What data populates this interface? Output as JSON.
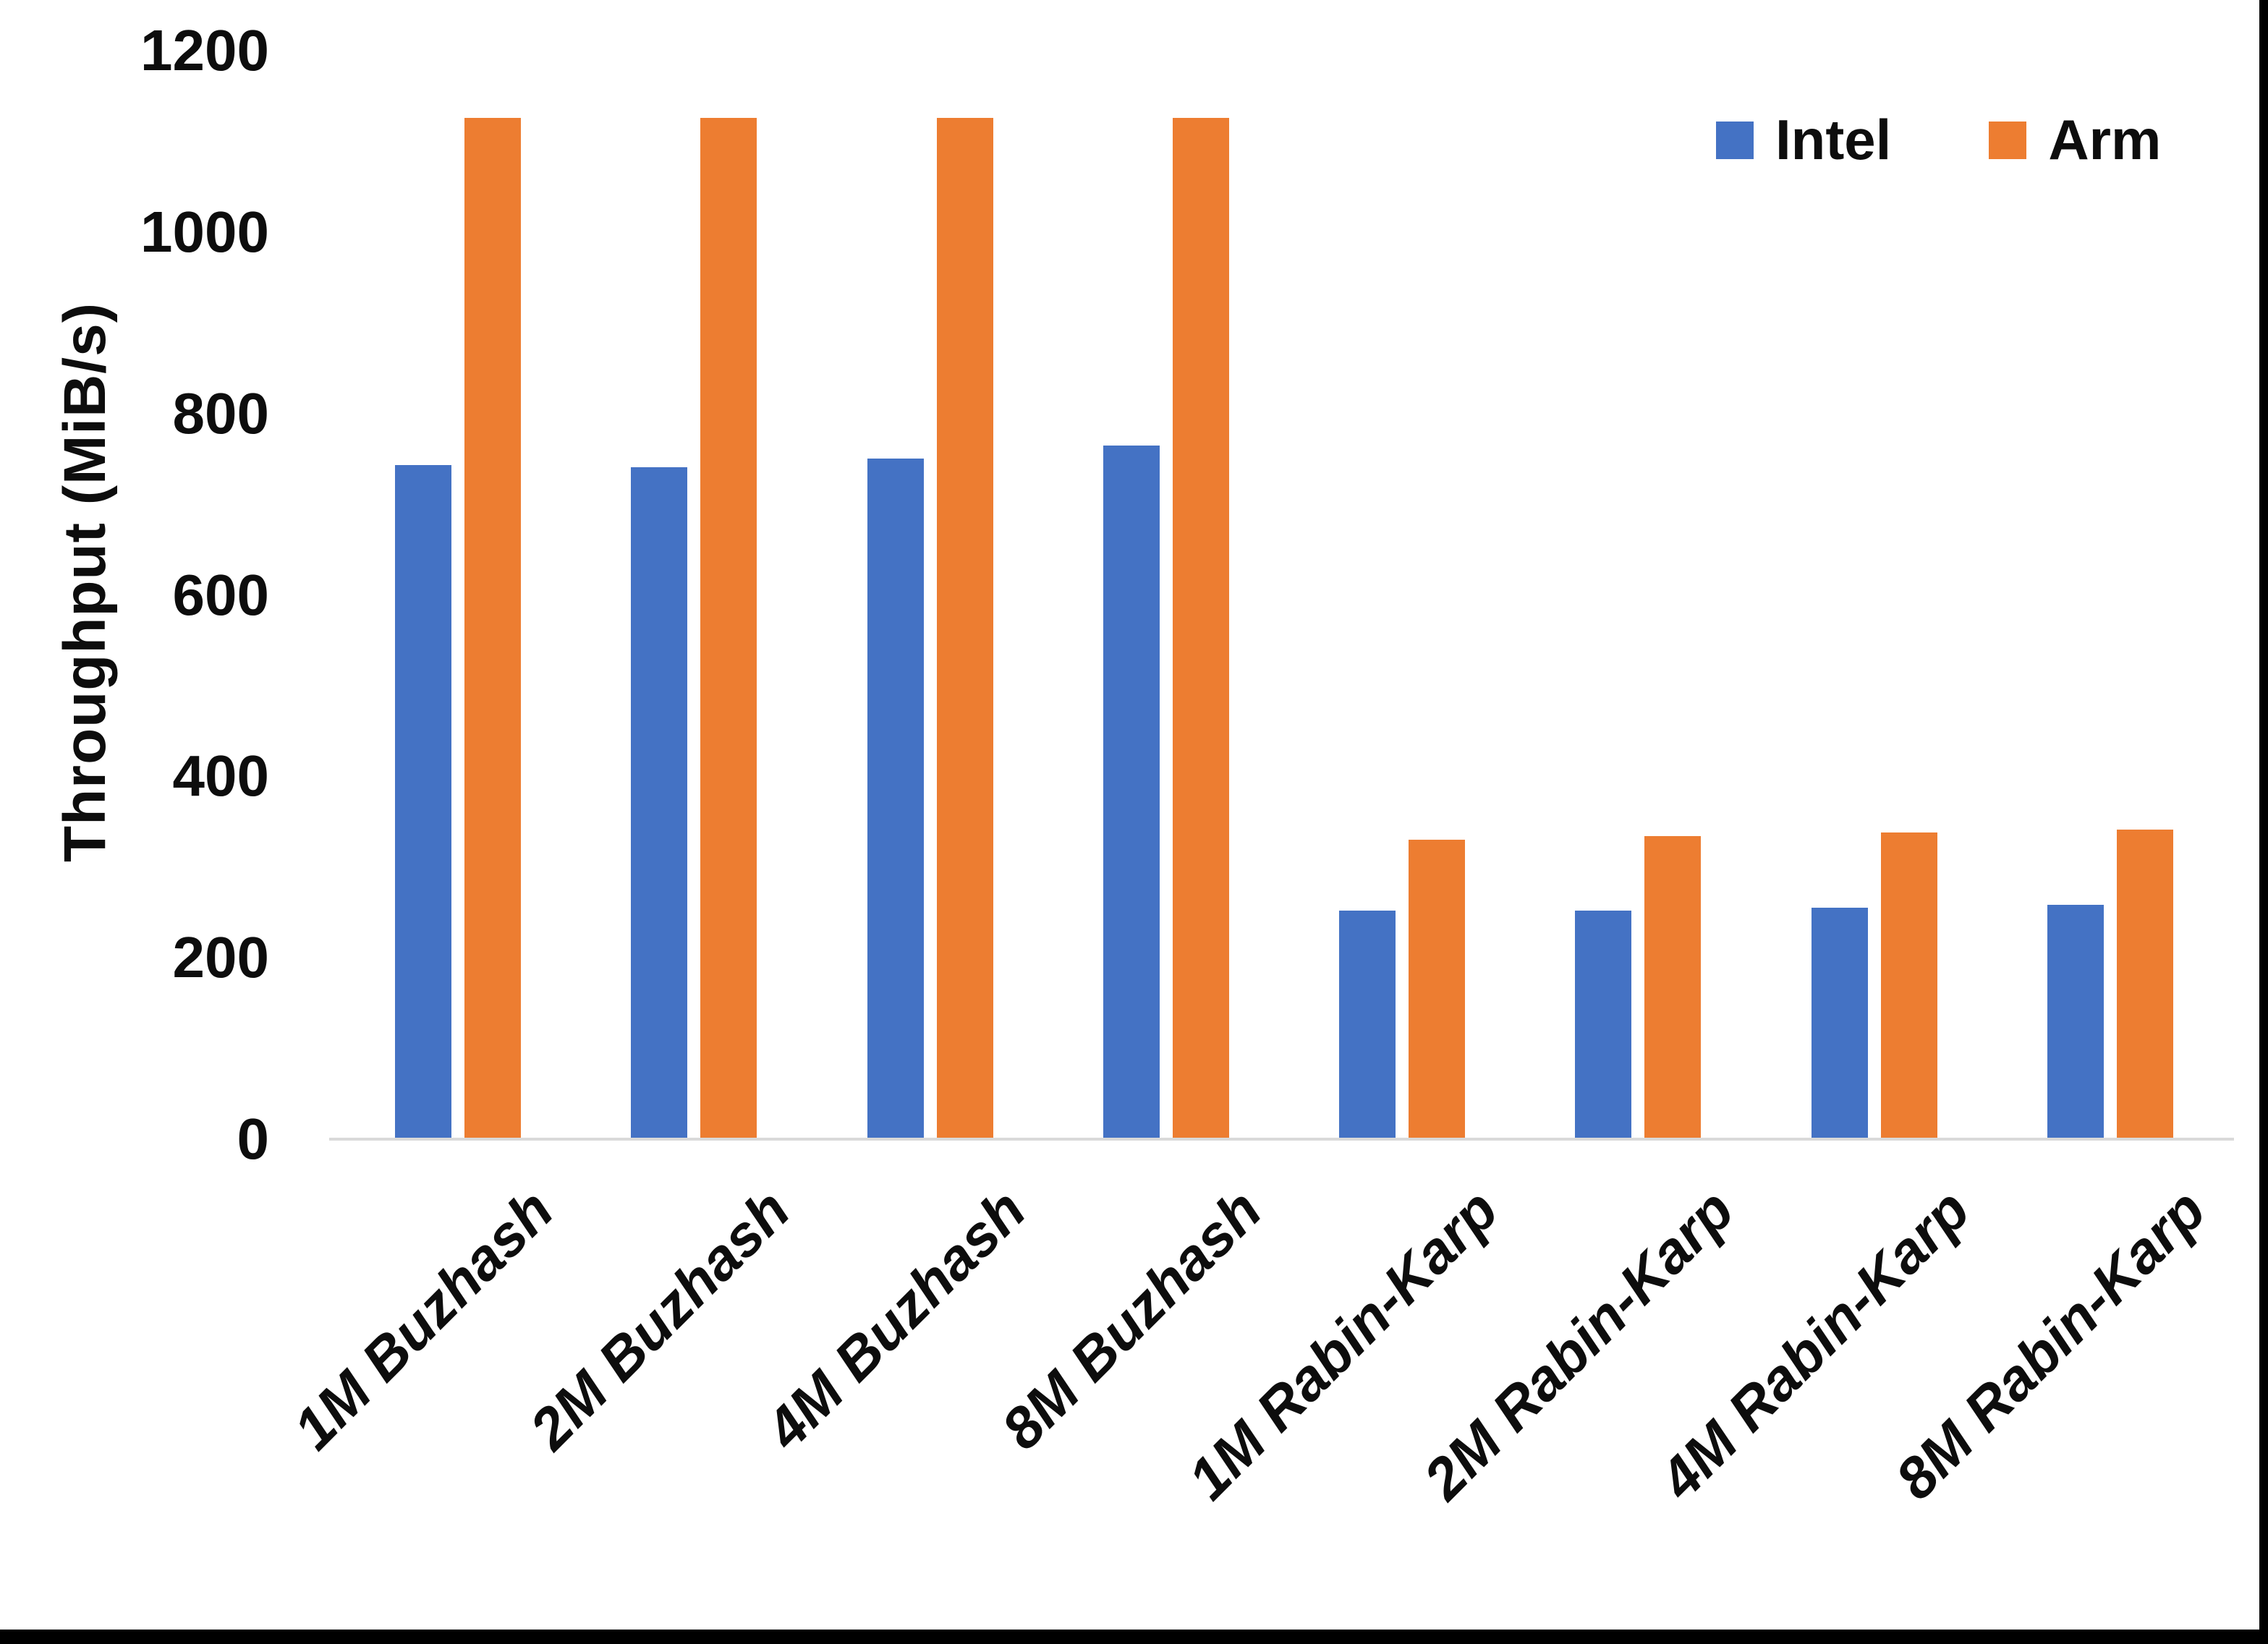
{
  "chart_data": {
    "type": "bar",
    "title": "",
    "ylabel": "Throughput (MiB/s)",
    "xlabel": "",
    "ylim": [
      0,
      1200
    ],
    "yticks": [
      0,
      200,
      400,
      600,
      800,
      1000,
      1200
    ],
    "categories": [
      "1M Buzhash",
      "2M Buzhash",
      "4M Buzhash",
      "8M Buzhash",
      "1M Rabin-Karp",
      "2M Rabin-Karp",
      "4M Rabin-Karp",
      "8M Rabin-Karp"
    ],
    "series": [
      {
        "name": "Intel",
        "color": "#4472C4",
        "values": [
          743,
          741,
          750,
          765,
          252,
          252,
          255,
          258
        ]
      },
      {
        "name": "Arm",
        "color": "#ED7D31",
        "values": [
          1126,
          1126,
          1126,
          1126,
          330,
          334,
          338,
          341
        ]
      }
    ],
    "legend_position": "top-right",
    "grid": false,
    "axis_line_color": "#D9D9D9",
    "frame_border_color": "#000000"
  }
}
